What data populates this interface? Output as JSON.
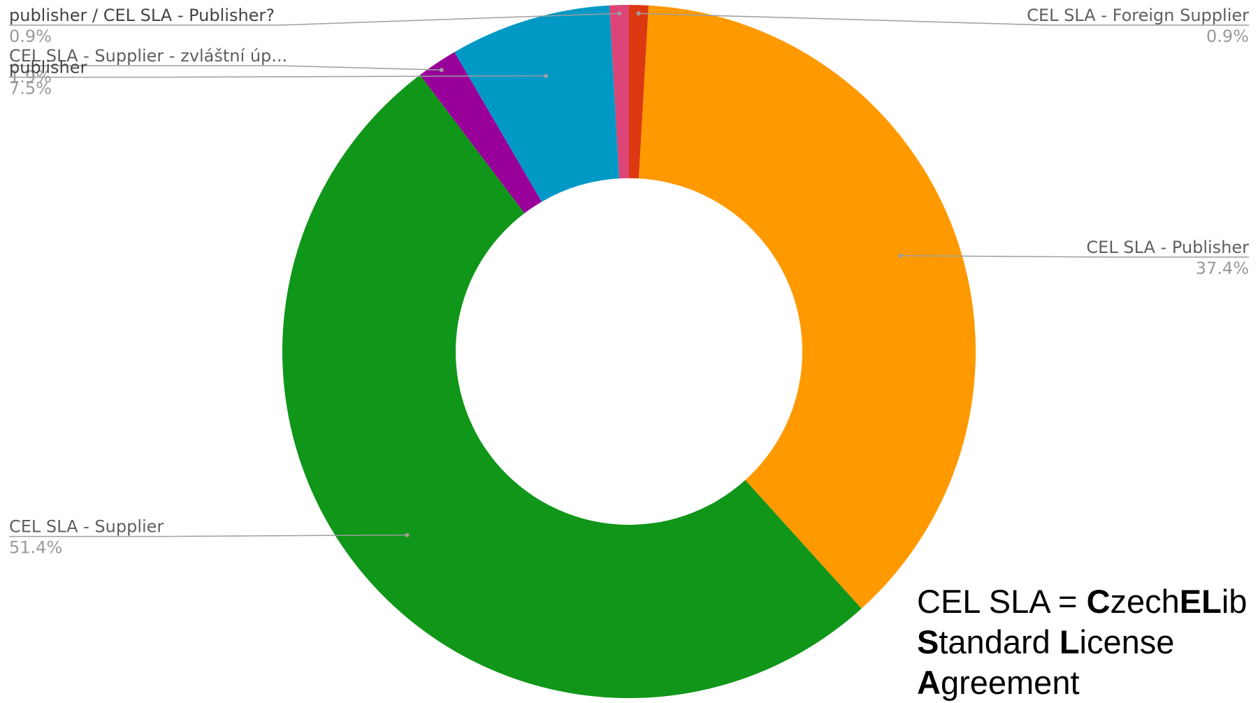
{
  "chart_data": {
    "type": "pie",
    "donut": true,
    "title": "",
    "slices": [
      {
        "label": "CEL SLA - Foreign Supplier",
        "value": 0.9,
        "pct_label": "0.9%",
        "color": "#dc3912",
        "side": "right",
        "label_style": "normal"
      },
      {
        "label": "CEL SLA - Publisher",
        "value": 37.4,
        "pct_label": "37.4%",
        "color": "#ff9900",
        "side": "right",
        "label_style": "normal"
      },
      {
        "label": "CEL SLA - Supplier",
        "value": 51.4,
        "pct_label": "51.4%",
        "color": "#109618",
        "side": "left",
        "label_style": "normal"
      },
      {
        "label": "CEL SLA - Supplier - zvláštní úp...",
        "value": 1.9,
        "pct_label": "1.9%",
        "color": "#990099",
        "side": "left",
        "label_style": "normal"
      },
      {
        "label": "publisher",
        "value": 7.5,
        "pct_label": "7.5%",
        "color": "#0099c6",
        "side": "left",
        "label_style": "dark"
      },
      {
        "label": "publisher / CEL SLA - Publisher?",
        "value": 0.9,
        "pct_label": "0.9%",
        "color": "#dd4477",
        "side": "left",
        "label_style": "dark"
      }
    ]
  },
  "footnote": {
    "line1": [
      {
        "text": "CEL SLA = ",
        "bold": false
      },
      {
        "text": "C",
        "bold": true
      },
      {
        "text": "zech",
        "bold": false
      },
      {
        "text": "EL",
        "bold": true
      },
      {
        "text": "ib",
        "bold": false
      }
    ],
    "line2": [
      {
        "text": "S",
        "bold": true
      },
      {
        "text": "tandard ",
        "bold": false
      },
      {
        "text": "L",
        "bold": true
      },
      {
        "text": "icense",
        "bold": false
      }
    ],
    "line3": [
      {
        "text": "A",
        "bold": true
      },
      {
        "text": "greement",
        "bold": false
      }
    ]
  }
}
